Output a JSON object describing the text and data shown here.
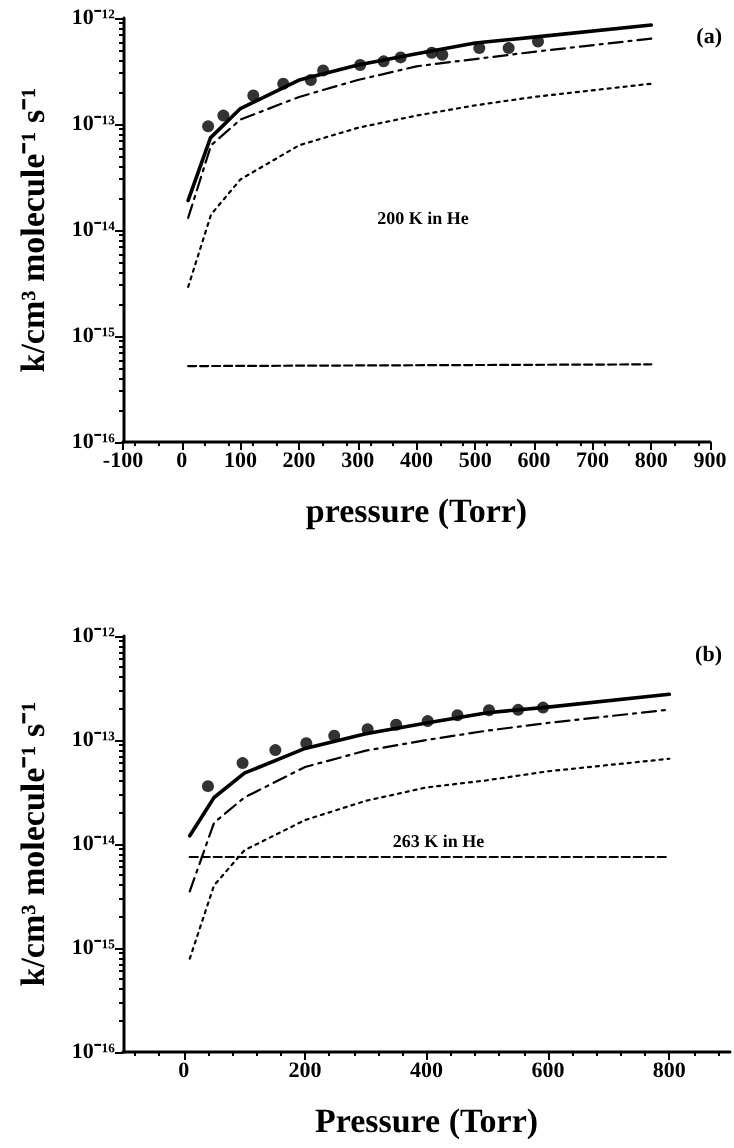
{
  "chart_data": [
    {
      "type": "line",
      "xlabel": "pressure (Torr)",
      "ylabel": "k/cm³ molecule⁻¹ s⁻¹",
      "annotations": [
        "(a)",
        "200 K in He"
      ],
      "log": "y",
      "grid": false,
      "xlim": [
        -100,
        900
      ],
      "xticks": [
        -100,
        0,
        100,
        200,
        300,
        400,
        500,
        600,
        700,
        800,
        900
      ],
      "ylim": [
        1e-16,
        1e-12
      ],
      "yticks": [
        {
          "value": 1e-16,
          "label": "10⁻¹⁶"
        },
        {
          "value": 1e-15,
          "label": "10⁻¹⁵"
        },
        {
          "value": 1e-14,
          "label": "10⁻¹⁴"
        },
        {
          "value": 1e-13,
          "label": "10⁻¹³"
        },
        {
          "value": 1e-12,
          "label": "10⁻¹²"
        }
      ],
      "series": [
        {
          "type": "scatter",
          "marker": "circle",
          "color": "#000000",
          "x": [
            45,
            71,
            122,
            173,
            220,
            241,
            304,
            344,
            373,
            426,
            444,
            507,
            557,
            607
          ],
          "values": [
            9.5e-14,
            1.2e-13,
            1.86e-13,
            2.4e-13,
            2.6e-13,
            3.2e-13,
            3.6e-13,
            3.9e-13,
            4.25e-13,
            4.7e-13,
            4.5e-13,
            5.2e-13,
            5.2e-13,
            6e-13
          ]
        },
        {
          "type": "line",
          "line_style": "solid",
          "color": "#000000",
          "x": [
            11,
            49,
            100,
            200,
            300,
            400,
            500,
            600,
            800
          ],
          "values": [
            1.9e-14,
            7.4e-14,
            1.4e-13,
            2.6e-13,
            3.6e-13,
            4.6e-13,
            5.8e-13,
            6.6e-13,
            8.6e-13
          ]
        },
        {
          "type": "line",
          "line_style": "dashdot",
          "color": "#000000",
          "x": [
            11,
            50,
            100,
            200,
            300,
            400,
            500,
            600,
            800
          ],
          "values": [
            1.3e-14,
            6.3e-14,
            1.1e-13,
            1.8e-13,
            2.6e-13,
            3.5e-13,
            4.1e-13,
            4.8e-13,
            6.4e-13
          ]
        },
        {
          "type": "line",
          "line_style": "dotted",
          "color": "#000000",
          "x": [
            11,
            50,
            100,
            200,
            300,
            400,
            500,
            600,
            800
          ],
          "values": [
            2.9e-15,
            1.4e-14,
            3e-14,
            6.3e-14,
            9.2e-14,
            1.2e-13,
            1.5e-13,
            1.8e-13,
            2.4e-13
          ]
        },
        {
          "type": "line",
          "line_style": "dashed",
          "color": "#000000",
          "x": [
            11,
            800
          ],
          "values": [
            5.2e-16,
            5.4e-16
          ]
        }
      ]
    },
    {
      "type": "line",
      "xlabel": "Pressure (Torr)",
      "ylabel": "k/cm³ molecule⁻¹ s⁻¹",
      "annotations": [
        "(b)",
        "263 K in He"
      ],
      "log": "y",
      "grid": false,
      "xlim": [
        -100,
        900
      ],
      "xticks": [
        0,
        200,
        400,
        600,
        800
      ],
      "ylim": [
        1e-16,
        1e-12
      ],
      "yticks": [
        {
          "value": 1e-16,
          "label": "10⁻¹⁶"
        },
        {
          "value": 1e-15,
          "label": "10⁻¹⁵"
        },
        {
          "value": 1e-14,
          "label": "10⁻¹⁴"
        },
        {
          "value": 1e-13,
          "label": "10⁻¹³"
        },
        {
          "value": 1e-12,
          "label": "10⁻¹²"
        }
      ],
      "series": [
        {
          "type": "scatter",
          "marker": "circle",
          "color": "#000000",
          "x": [
            40,
            97,
            151,
            202,
            248,
            303,
            350,
            402,
            451,
            503,
            551,
            592
          ],
          "values": [
            3.6e-14,
            6e-14,
            8e-14,
            9.3e-14,
            1.1e-13,
            1.27e-13,
            1.4e-13,
            1.52e-13,
            1.73e-13,
            1.93e-13,
            1.95e-13,
            2.05e-13
          ]
        },
        {
          "type": "line",
          "line_style": "solid",
          "color": "#000000",
          "x": [
            10,
            50,
            100,
            200,
            300,
            400,
            500,
            600,
            800
          ],
          "values": [
            1.2e-14,
            2.8e-14,
            4.8e-14,
            8.3e-14,
            1.15e-13,
            1.46e-13,
            1.83e-13,
            2.07e-13,
            2.75e-13
          ]
        },
        {
          "type": "line",
          "line_style": "dashdot",
          "color": "#000000",
          "x": [
            10,
            50,
            100,
            200,
            300,
            400,
            500,
            600,
            800
          ],
          "values": [
            3.5e-15,
            1.6e-14,
            2.8e-14,
            5.5e-14,
            7.9e-14,
            1e-13,
            1.23e-13,
            1.46e-13,
            1.96e-13
          ]
        },
        {
          "type": "line",
          "line_style": "dotted",
          "color": "#000000",
          "x": [
            10,
            50,
            100,
            200,
            300,
            400,
            500,
            600,
            800
          ],
          "values": [
            7.9e-16,
            4e-15,
            8.7e-15,
            1.7e-14,
            2.6e-14,
            3.5e-14,
            4.1e-14,
            5e-14,
            6.6e-14
          ]
        },
        {
          "type": "line",
          "line_style": "dashed",
          "color": "#000000",
          "x": [
            10,
            800
          ],
          "values": [
            7.5e-15,
            7.5e-15
          ]
        }
      ]
    }
  ]
}
